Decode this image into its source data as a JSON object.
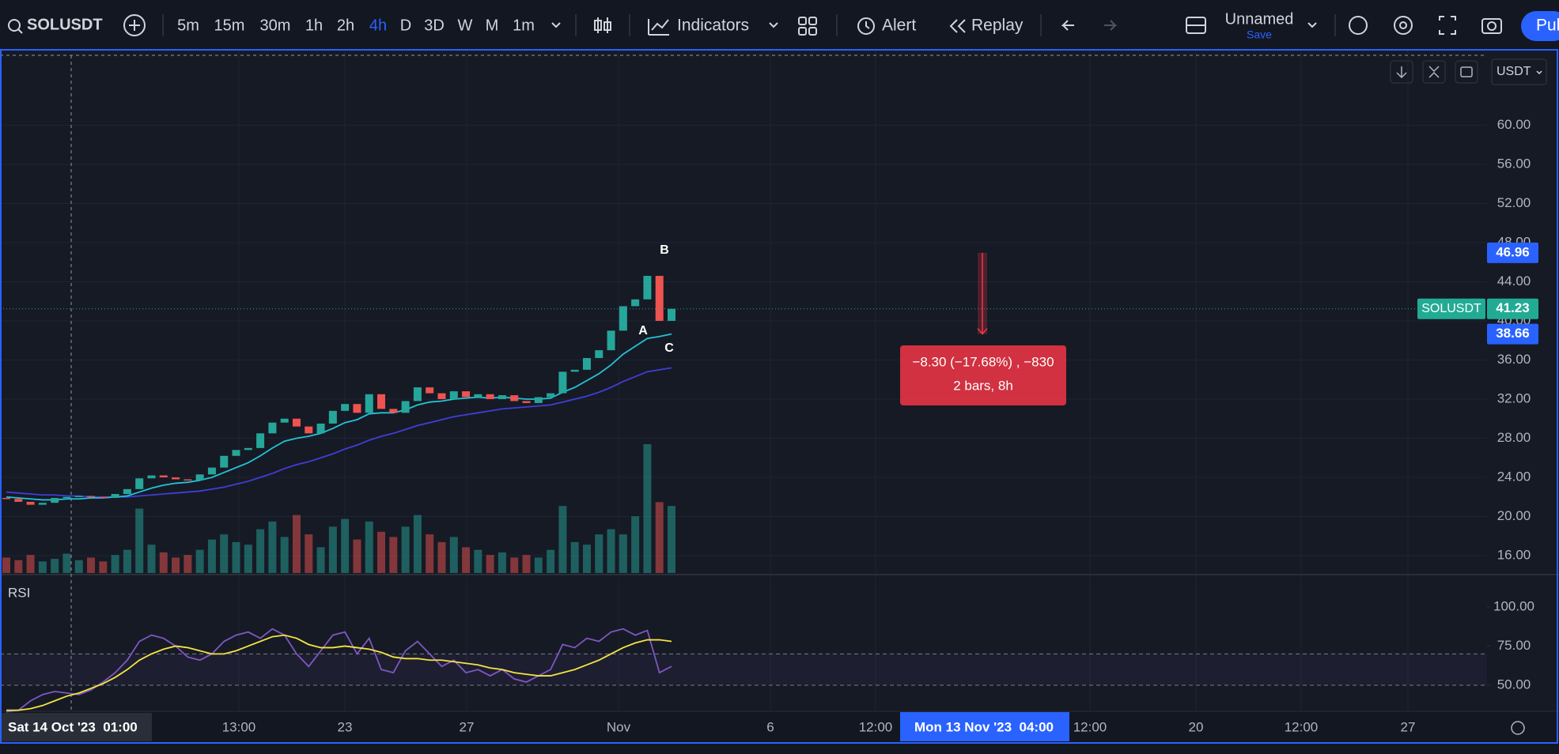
{
  "toolbar": {
    "symbol": "SOLUSDT",
    "intervals": [
      "5m",
      "15m",
      "30m",
      "1h",
      "2h",
      "4h",
      "D",
      "3D",
      "W",
      "M",
      "1m"
    ],
    "active_interval": 5,
    "indicators": "Indicators",
    "alert": "Alert",
    "replay": "Replay",
    "layout_name": "Unnamed",
    "save": "Save",
    "publish": "Pub"
  },
  "chart": {
    "currency": "USDT",
    "ylim": [
      14.06,
      67.15
    ],
    "yticks": [
      {
        "value": 16,
        "label": "16.00"
      },
      {
        "value": 20,
        "label": "20.00"
      },
      {
        "value": 24,
        "label": "24.00"
      },
      {
        "value": 28,
        "label": "28.00"
      },
      {
        "value": 32,
        "label": "32.00"
      },
      {
        "value": 36,
        "label": "36.00"
      },
      {
        "value": 40,
        "label": "40.00"
      },
      {
        "value": 44,
        "label": "44.00"
      },
      {
        "value": 48,
        "label": "48.00"
      },
      {
        "value": 52,
        "label": "52.00"
      },
      {
        "value": 56,
        "label": "56.00"
      },
      {
        "value": 60,
        "label": "60.00"
      }
    ],
    "open": [
      21.9,
      21.8,
      21.5,
      21.2,
      21.4,
      21.9,
      22.0,
      22.1,
      22.0,
      21.9,
      22.3,
      22.8,
      23.9,
      24.2,
      24.0,
      23.8,
      23.7,
      24.3,
      25.0,
      26.2,
      26.8,
      27.0,
      28.5,
      29.6,
      30.0,
      29.2,
      28.5,
      29.5,
      30.8,
      31.5,
      30.6,
      32.5,
      31.0,
      30.6,
      31.8,
      33.2,
      32.6,
      32.0,
      32.8,
      32.2,
      32.5,
      32.0,
      32.4,
      31.8,
      31.6,
      32.2,
      32.6,
      34.8,
      35.0,
      36.2,
      37.0,
      39.0,
      41.5,
      42.2,
      44.6,
      40.0
    ],
    "close": [
      21.8,
      21.5,
      21.2,
      21.4,
      21.9,
      22.0,
      22.1,
      22.0,
      21.9,
      22.3,
      22.8,
      23.9,
      24.2,
      24.0,
      23.8,
      23.7,
      24.3,
      25.0,
      26.2,
      26.8,
      27.0,
      28.5,
      29.6,
      30.0,
      29.2,
      28.5,
      29.5,
      30.8,
      31.5,
      30.6,
      32.5,
      31.0,
      30.6,
      31.8,
      33.2,
      32.6,
      32.0,
      32.8,
      32.2,
      32.5,
      32.0,
      32.4,
      31.8,
      31.6,
      32.2,
      32.6,
      34.8,
      35.0,
      36.2,
      37.0,
      39.0,
      41.5,
      42.2,
      44.6,
      40.0,
      41.23
    ],
    "volume": [
      12,
      10,
      14,
      9,
      11,
      15,
      10,
      12,
      9,
      14,
      18,
      50,
      22,
      16,
      12,
      14,
      18,
      26,
      30,
      24,
      22,
      34,
      40,
      28,
      45,
      30,
      20,
      36,
      42,
      26,
      40,
      32,
      28,
      36,
      45,
      30,
      24,
      28,
      20,
      18,
      14,
      16,
      12,
      14,
      12,
      18,
      52,
      24,
      22,
      30,
      34,
      30,
      44,
      100,
      55,
      52
    ],
    "ma_fast": [
      22.0,
      21.9,
      21.8,
      21.7,
      21.7,
      21.8,
      21.8,
      21.9,
      21.9,
      22.0,
      22.1,
      22.5,
      22.9,
      23.2,
      23.4,
      23.5,
      23.7,
      24.0,
      24.5,
      25.0,
      25.5,
      26.2,
      27.0,
      27.7,
      28.0,
      28.2,
      28.5,
      29.0,
      29.6,
      29.9,
      30.5,
      30.6,
      30.6,
      30.9,
      31.4,
      31.7,
      31.8,
      32.0,
      32.1,
      32.2,
      32.1,
      32.2,
      32.1,
      32.0,
      32.0,
      32.1,
      32.7,
      33.2,
      33.9,
      34.6,
      35.5,
      36.6,
      37.4,
      38.2,
      38.4,
      38.66
    ],
    "ma_slow": [
      22.5,
      22.4,
      22.3,
      22.2,
      22.2,
      22.1,
      22.1,
      22.0,
      22.0,
      22.0,
      22.0,
      22.1,
      22.2,
      22.3,
      22.4,
      22.5,
      22.6,
      22.8,
      23.0,
      23.3,
      23.6,
      24.0,
      24.4,
      24.9,
      25.3,
      25.6,
      26.0,
      26.4,
      26.9,
      27.3,
      27.8,
      28.2,
      28.5,
      28.9,
      29.3,
      29.6,
      29.9,
      30.2,
      30.4,
      30.6,
      30.8,
      31.0,
      31.1,
      31.2,
      31.3,
      31.4,
      31.7,
      32.0,
      32.3,
      32.7,
      33.2,
      33.8,
      34.3,
      34.8,
      35.0,
      35.2
    ],
    "up_color": "#26a69a",
    "down_color": "#ef5350",
    "fast_color": "#22c3d6",
    "slow_color": "#3f3fd6",
    "price_labels": {
      "high": 46.96,
      "symbol": "SOLUSDT",
      "last": 41.23,
      "low": 38.66
    },
    "annotations": [
      "A",
      "B",
      "C"
    ],
    "measure": {
      "line1": "−8.30 (−17.68%) , −830",
      "line2": "2 bars, 8h"
    }
  },
  "rsi": {
    "title": "RSI",
    "ylim": [
      33.3,
      120.7
    ],
    "yticks": [
      {
        "value": 50,
        "label": "50.00"
      },
      {
        "value": 75,
        "label": "75.00"
      },
      {
        "value": 100,
        "label": "100.00"
      }
    ],
    "bands": [
      70,
      50
    ],
    "values": [
      33,
      34,
      40,
      44,
      46,
      45,
      44,
      47,
      52,
      58,
      66,
      78,
      82,
      80,
      75,
      68,
      66,
      70,
      78,
      82,
      84,
      80,
      86,
      82,
      70,
      62,
      72,
      82,
      84,
      70,
      80,
      60,
      58,
      72,
      78,
      70,
      62,
      66,
      58,
      60,
      56,
      60,
      54,
      52,
      56,
      60,
      76,
      74,
      80,
      78,
      84,
      86,
      82,
      85,
      58,
      62
    ],
    "ma": [
      34,
      34,
      35,
      37,
      40,
      43,
      45,
      48,
      51,
      55,
      60,
      66,
      70,
      73,
      75,
      74,
      72,
      70,
      70,
      72,
      75,
      78,
      81,
      82,
      80,
      76,
      74,
      74,
      75,
      74,
      73,
      71,
      68,
      67,
      67,
      66,
      66,
      65,
      64,
      63,
      61,
      60,
      58,
      57,
      56,
      56,
      58,
      60,
      63,
      66,
      70,
      74,
      77,
      79,
      79,
      78
    ],
    "color": "#7e57c2",
    "ma_color": "#f5e442"
  },
  "time_axis": {
    "labels": [
      "Sat 14 Oct '23  01:00",
      "13:00",
      "23",
      "27",
      "Nov",
      "6",
      "12:00",
      "Mon 13 Nov '23  04:00",
      "12:00",
      "20",
      "12:00",
      "27"
    ]
  }
}
